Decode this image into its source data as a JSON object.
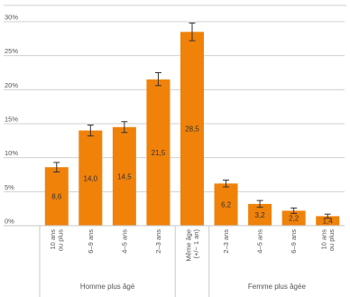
{
  "chart_data": {
    "type": "bar",
    "categories": [
      "10 ans ou plus",
      "6–9 ans",
      "4–5 ans",
      "2–3 ans",
      "Même âge (+/− 1 an)",
      "2–3 ans",
      "4–5 ans",
      "6–9 ans",
      "10 ans ou plus"
    ],
    "category_lines": [
      [
        "10 ans",
        "ou plus"
      ],
      [
        "6–9 ans"
      ],
      [
        "4–5 ans"
      ],
      [
        "2–3 ans"
      ],
      [
        "Même âge",
        "(+/− 1 an)"
      ],
      [
        "2–3 ans"
      ],
      [
        "4–5 ans"
      ],
      [
        "6–9 ans"
      ],
      [
        "10 ans",
        "ou plus"
      ]
    ],
    "values": [
      8.6,
      14.0,
      14.5,
      21.5,
      28.5,
      6.2,
      3.2,
      2.2,
      1.4
    ],
    "data_labels": [
      "8,6",
      "14,0",
      "14,5",
      "21,5",
      "28,5",
      "6,2",
      "3,2",
      "2,2",
      "1,4"
    ],
    "error_low": [
      7.9,
      13.2,
      13.7,
      20.6,
      27.2,
      5.7,
      2.7,
      1.8,
      1.1
    ],
    "error_high": [
      9.3,
      14.8,
      15.3,
      22.5,
      29.8,
      6.7,
      3.7,
      2.6,
      1.7
    ],
    "groups": [
      {
        "label": "Homme plus âgé",
        "start": 0,
        "end": 3
      },
      {
        "label": "Femme plus âgée",
        "start": 5,
        "end": 8
      }
    ],
    "y_ticks": [
      "0%",
      "5%",
      "10%",
      "15%",
      "20%",
      "25%",
      "30%"
    ],
    "y_tick_values": [
      0,
      5,
      10,
      15,
      20,
      25,
      30
    ],
    "ylim": [
      0,
      30
    ],
    "grid": true,
    "colors": {
      "bar": "#f0820a",
      "grid": "#d0d0d0",
      "error": "#333333"
    }
  }
}
